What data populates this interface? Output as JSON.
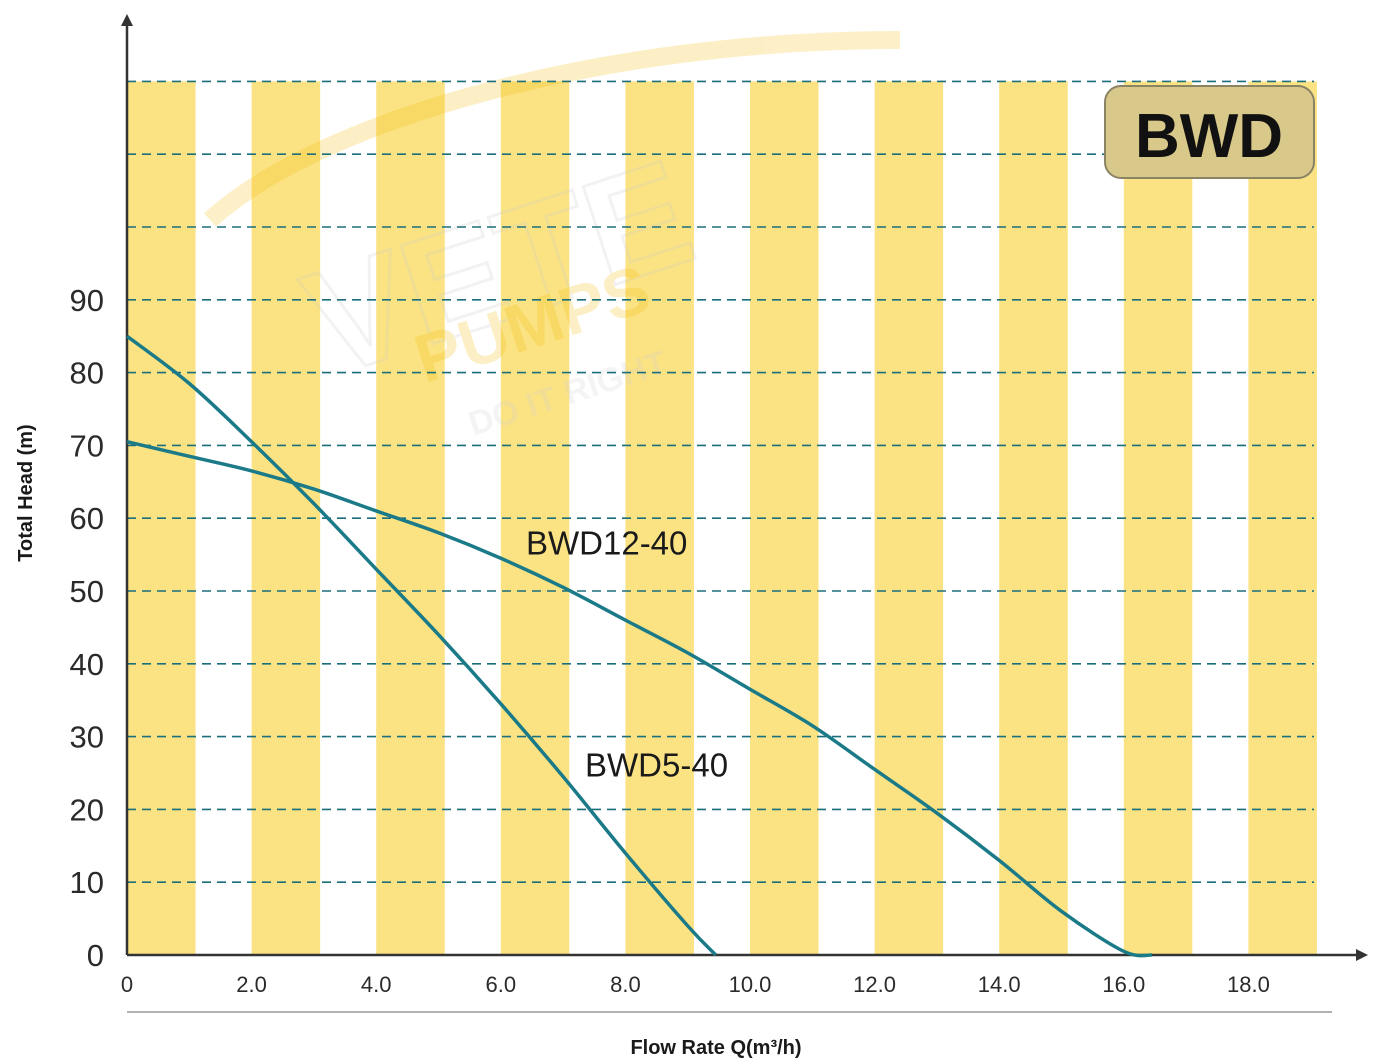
{
  "chart_data": {
    "type": "line",
    "xlabel": "Flow Rate Q(m³/h)",
    "ylabel": "Total Head (m)",
    "xlim": [
      0,
      19
    ],
    "ylim": [
      0,
      120
    ],
    "x_ticks": [
      {
        "value": 0,
        "label": "0"
      },
      {
        "value": 2,
        "label": "2.0"
      },
      {
        "value": 4,
        "label": "4.0"
      },
      {
        "value": 6,
        "label": "6.0"
      },
      {
        "value": 8,
        "label": "8.0"
      },
      {
        "value": 10,
        "label": "10.0"
      },
      {
        "value": 12,
        "label": "12.0"
      },
      {
        "value": 14,
        "label": "14.0"
      },
      {
        "value": 16,
        "label": "16.0"
      },
      {
        "value": 18,
        "label": "18.0"
      }
    ],
    "y_ticks": [
      {
        "value": 0,
        "label": "0"
      },
      {
        "value": 10,
        "label": "10"
      },
      {
        "value": 20,
        "label": "20"
      },
      {
        "value": 30,
        "label": "30"
      },
      {
        "value": 40,
        "label": "40"
      },
      {
        "value": 50,
        "label": "50"
      },
      {
        "value": 60,
        "label": "60"
      },
      {
        "value": 70,
        "label": "70"
      },
      {
        "value": 80,
        "label": "80"
      },
      {
        "value": 90,
        "label": "90"
      }
    ],
    "gridlines_y": [
      10,
      20,
      30,
      40,
      50,
      60,
      70,
      80,
      90,
      100,
      110,
      120
    ],
    "grid": true,
    "series": [
      {
        "name": "BWD5-40",
        "x": [
          0,
          1,
          2,
          3,
          4,
          5,
          6,
          7,
          8,
          9,
          9.45
        ],
        "y": [
          85,
          78.5,
          70.5,
          62,
          53,
          44,
          34.5,
          24.5,
          14,
          4,
          0
        ]
      },
      {
        "name": "BWD12-40",
        "x": [
          0,
          1,
          2,
          3,
          4,
          5,
          6,
          7,
          8,
          9,
          10,
          11,
          12,
          13,
          14,
          15,
          16,
          16.45
        ],
        "y": [
          70.5,
          68.5,
          66.5,
          64,
          61,
          58,
          54.5,
          50.5,
          46,
          41.5,
          36.5,
          31.5,
          25.5,
          19.5,
          13,
          6,
          0.5,
          0
        ]
      }
    ],
    "annotations": [
      {
        "text": "BWD12-40",
        "x": 7.7,
        "y": 55
      },
      {
        "text": "BWD5-40",
        "x": 8.5,
        "y": 24.5
      }
    ],
    "badge": "BWD",
    "stripe_color": "#fbe383",
    "curve_color": "#1b7a88",
    "grid_color": "#1b6e7c"
  },
  "watermark": {
    "logo_text": "VETE",
    "brand": "PUMPS",
    "tagline": "DO IT RIGHT",
    "color": "#f5b800"
  }
}
